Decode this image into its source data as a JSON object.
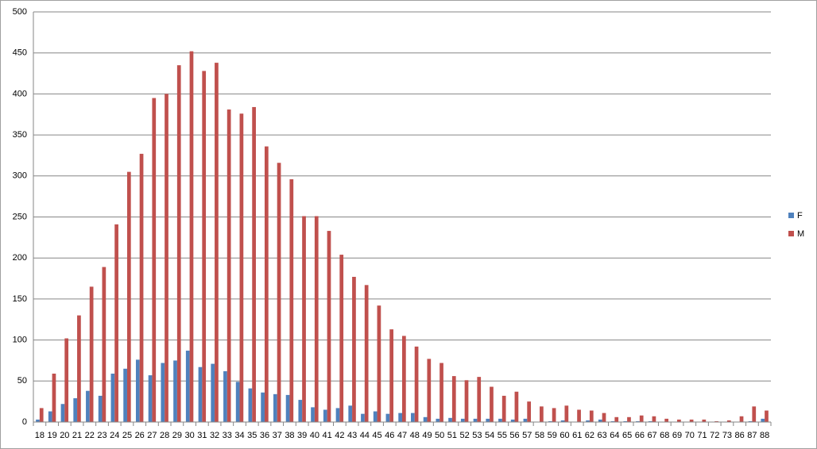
{
  "chart_data": {
    "type": "bar",
    "categories": [
      "18",
      "19",
      "20",
      "21",
      "22",
      "23",
      "24",
      "25",
      "26",
      "27",
      "28",
      "29",
      "30",
      "31",
      "32",
      "33",
      "34",
      "35",
      "36",
      "37",
      "38",
      "39",
      "40",
      "41",
      "42",
      "43",
      "44",
      "45",
      "46",
      "47",
      "48",
      "49",
      "50",
      "51",
      "52",
      "53",
      "54",
      "55",
      "56",
      "57",
      "58",
      "59",
      "60",
      "61",
      "62",
      "63",
      "64",
      "65",
      "66",
      "67",
      "68",
      "69",
      "70",
      "71",
      "72",
      "73",
      "86",
      "87",
      "88"
    ],
    "series": [
      {
        "name": "F",
        "color": "#4f81bd",
        "values": [
          3,
          13,
          22,
          29,
          38,
          32,
          59,
          65,
          76,
          57,
          72,
          75,
          87,
          67,
          71,
          62,
          49,
          41,
          36,
          34,
          33,
          27,
          18,
          15,
          17,
          20,
          10,
          13,
          10,
          11,
          11,
          6,
          4,
          5,
          4,
          4,
          4,
          4,
          3,
          4,
          0,
          1,
          2,
          0,
          2,
          3,
          1,
          1,
          1,
          1,
          0,
          0,
          0,
          0,
          0,
          0,
          0,
          1,
          4
        ]
      },
      {
        "name": "M",
        "color": "#c0504d",
        "values": [
          17,
          59,
          102,
          130,
          165,
          189,
          241,
          305,
          327,
          395,
          400,
          435,
          452,
          428,
          438,
          381,
          376,
          384,
          336,
          316,
          296,
          251,
          251,
          233,
          204,
          177,
          167,
          142,
          113,
          105,
          92,
          77,
          72,
          56,
          51,
          55,
          43,
          32,
          37,
          25,
          19,
          17,
          20,
          15,
          14,
          11,
          6,
          6,
          8,
          7,
          4,
          3,
          3,
          3,
          1,
          2,
          7,
          19,
          14
        ]
      }
    ],
    "ylim": [
      0,
      500
    ],
    "yticks": [
      0,
      50,
      100,
      150,
      200,
      250,
      300,
      350,
      400,
      450,
      500
    ],
    "grid": true,
    "legend": "right"
  }
}
